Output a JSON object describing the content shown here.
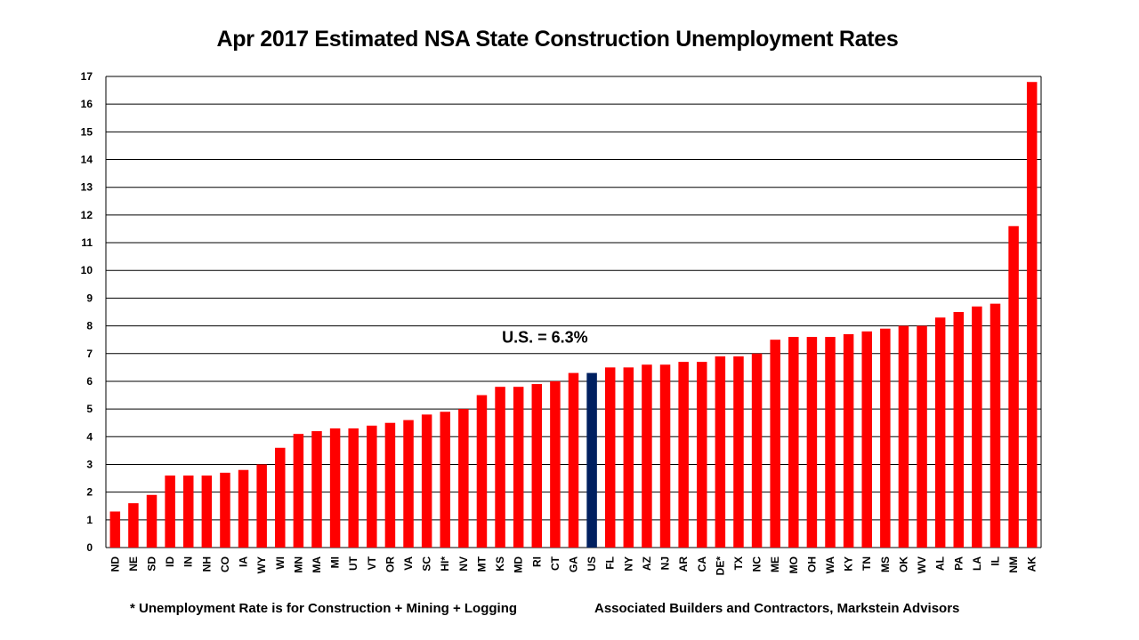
{
  "colors": {
    "bar": "#ff0000",
    "highlight": "#002060",
    "grid": "#000000"
  },
  "chart_data": {
    "type": "bar",
    "title": "Apr 2017 Estimated NSA State Construction Unemployment Rates",
    "xlabel": "",
    "ylabel": "",
    "ylim": [
      0,
      17
    ],
    "yticks": [
      0,
      1,
      2,
      3,
      4,
      5,
      6,
      7,
      8,
      9,
      10,
      11,
      12,
      13,
      14,
      15,
      16,
      17
    ],
    "grid": true,
    "highlight_category": "US",
    "categories": [
      "ND",
      "NE",
      "SD",
      "ID",
      "IN",
      "NH",
      "CO",
      "IA",
      "WY",
      "WI",
      "MN",
      "MA",
      "MI",
      "UT",
      "VT",
      "OR",
      "VA",
      "SC",
      "HI*",
      "NV",
      "MT",
      "KS",
      "MD",
      "RI",
      "CT",
      "GA",
      "US",
      "FL",
      "NY",
      "AZ",
      "NJ",
      "AR",
      "CA",
      "DE*",
      "TX",
      "NC",
      "ME",
      "MO",
      "OH",
      "WA",
      "KY",
      "TN",
      "MS",
      "OK",
      "WV",
      "AL",
      "PA",
      "LA",
      "IL",
      "NM",
      "AK"
    ],
    "values": [
      1.3,
      1.6,
      1.9,
      2.6,
      2.6,
      2.6,
      2.7,
      2.8,
      3.0,
      3.6,
      4.1,
      4.2,
      4.3,
      4.3,
      4.4,
      4.5,
      4.6,
      4.8,
      4.9,
      5.0,
      5.5,
      5.8,
      5.8,
      5.9,
      6.0,
      6.3,
      6.3,
      6.5,
      6.5,
      6.6,
      6.6,
      6.7,
      6.7,
      6.9,
      6.9,
      7.0,
      7.5,
      7.6,
      7.6,
      7.6,
      7.7,
      7.8,
      7.9,
      8.0,
      8.0,
      8.3,
      8.5,
      8.7,
      8.8,
      11.6,
      16.8
    ],
    "annotation": "U.S. = 6.3%"
  },
  "footnotes": {
    "left": "* Unemployment Rate is for Construction + Mining + Logging",
    "right": "Associated Builders and Contractors, Markstein Advisors"
  }
}
